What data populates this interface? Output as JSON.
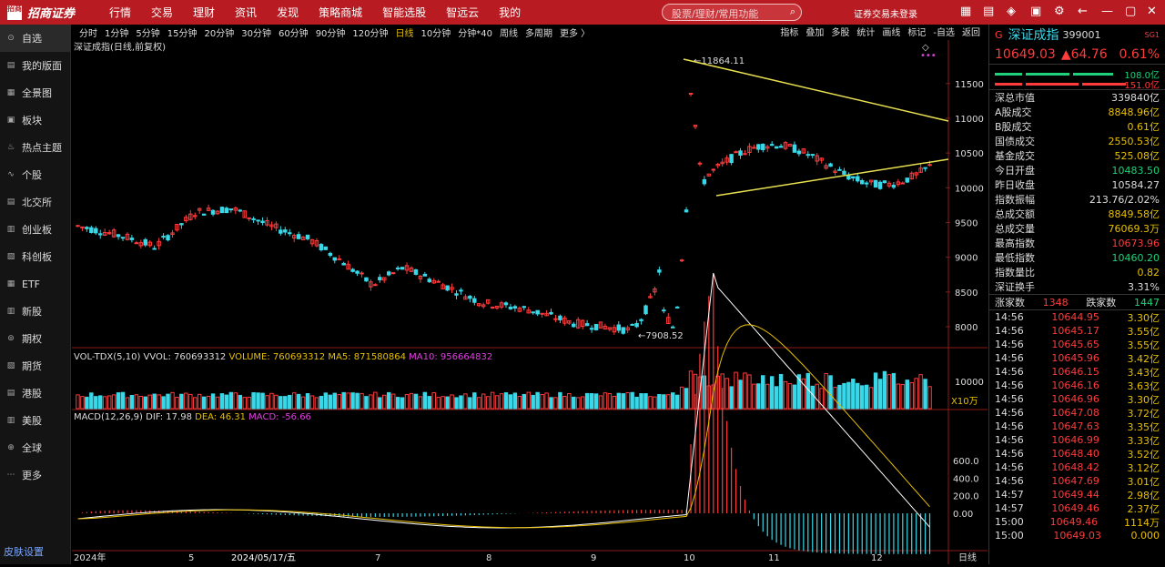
{
  "topbar": {
    "logo": "招商证券",
    "logo_mark": "招商",
    "nav": [
      "行情",
      "交易",
      "理财",
      "资讯",
      "发现",
      "策略商城",
      "智能选股",
      "智远云",
      "我的"
    ],
    "search_placeholder": "股票/理财/常用功能",
    "trade_status": "证券交易未登录"
  },
  "sidebar": {
    "items": [
      "自选",
      "我的版面",
      "全景图",
      "板块",
      "热点主题",
      "个股",
      "北交所",
      "创业板",
      "科创板",
      "ETF",
      "新股",
      "期权",
      "期货",
      "港股",
      "美股",
      "全球",
      "更多"
    ],
    "skin": "皮肤设置"
  },
  "toolbar": {
    "periods": [
      "分时",
      "1分钟",
      "5分钟",
      "15分钟",
      "20分钟",
      "30分钟",
      "60分钟",
      "90分钟",
      "120分钟",
      "日线",
      "10分钟",
      "分钟*40",
      "周线",
      "多周期",
      "更多 〉"
    ],
    "selected": "日线",
    "tools": [
      "指标",
      "叠加",
      "多股",
      "统计",
      "画线",
      "标记",
      "-自选",
      "返回"
    ]
  },
  "chart": {
    "title": "深证成指(日线,前复权)",
    "high_label": "11864.11",
    "low_label": "7908.52",
    "y_ticks": [
      "11500",
      "11000",
      "10500",
      "10000",
      "9500",
      "9000",
      "8500",
      "8000"
    ],
    "vol_legend": {
      "name": "VOL-TDX(5,10)",
      "vvol": "VVOL: 760693312",
      "volume": "VOLUME: 760693312",
      "ma5": "MA5: 871580864",
      "ma10": "MA10: 956664832"
    },
    "vol_ticks": [
      "10000"
    ],
    "vol_unit": "X10万",
    "macd_legend": {
      "name": "MACD(12,26,9)",
      "dif": "DIF: 17.98",
      "dea": "DEA: 46.31",
      "macd": "MACD: -56.66"
    },
    "macd_ticks": [
      "600.0",
      "400.0",
      "200.0",
      "0.00"
    ],
    "x_labels": [
      "2024年",
      "5",
      "2024/05/17/五",
      "7",
      "8",
      "9",
      "10",
      "11",
      "12"
    ],
    "period_label": "日线",
    "colors": {
      "up": "#ff3b3b",
      "down": "#38d8e8",
      "ma5": "#ffffff",
      "ma10": "#e8c000",
      "trend": "#e8e050"
    }
  },
  "quote": {
    "prefix": "G",
    "name": "深证成指",
    "code": "399001",
    "badge": "SG1",
    "price": "10649.03",
    "change": "▲64.76",
    "pct": "0.61%",
    "up_ratio": "108.0亿",
    "down_ratio": "151.0亿",
    "rows": [
      [
        "深总市值",
        "339840亿",
        "white"
      ],
      [
        "A股成交",
        "8848.96亿",
        "yellow"
      ],
      [
        "B股成交",
        "0.61亿",
        "yellow"
      ],
      [
        "国债成交",
        "2550.53亿",
        "yellow"
      ],
      [
        "基金成交",
        "525.08亿",
        "yellow"
      ],
      [
        "今日开盘",
        "10483.50",
        "green"
      ],
      [
        "昨日收盘",
        "10584.27",
        "white"
      ],
      [
        "指数振幅",
        "213.76/2.02%",
        "white"
      ],
      [
        "总成交额",
        "8849.58亿",
        "yellow"
      ],
      [
        "总成交量",
        "76069.3万",
        "yellow"
      ],
      [
        "最高指数",
        "10673.96",
        "red"
      ],
      [
        "最低指数",
        "10460.20",
        "green"
      ],
      [
        "指数量比",
        "0.82",
        "yellow"
      ],
      [
        "深证换手",
        "3.31%",
        "white"
      ]
    ],
    "adv_label": "涨家数",
    "adv": "1348",
    "dec_label": "跌家数",
    "dec": "1447",
    "ticks": [
      [
        "14:56",
        "10644.95",
        "3.30亿"
      ],
      [
        "14:56",
        "10645.17",
        "3.55亿"
      ],
      [
        "14:56",
        "10645.65",
        "3.55亿"
      ],
      [
        "14:56",
        "10645.96",
        "3.42亿"
      ],
      [
        "14:56",
        "10646.15",
        "3.43亿"
      ],
      [
        "14:56",
        "10646.16",
        "3.63亿"
      ],
      [
        "14:56",
        "10646.96",
        "3.30亿"
      ],
      [
        "14:56",
        "10647.08",
        "3.72亿"
      ],
      [
        "14:56",
        "10647.63",
        "3.35亿"
      ],
      [
        "14:56",
        "10646.99",
        "3.33亿"
      ],
      [
        "14:56",
        "10648.40",
        "3.52亿"
      ],
      [
        "14:56",
        "10648.42",
        "3.12亿"
      ],
      [
        "14:56",
        "10647.69",
        "3.01亿"
      ],
      [
        "14:57",
        "10649.44",
        "2.98亿"
      ],
      [
        "14:57",
        "10649.46",
        "2.37亿"
      ],
      [
        "15:00",
        "10649.46",
        "1114万"
      ],
      [
        "15:00",
        "10649.03",
        "0.000"
      ]
    ]
  }
}
